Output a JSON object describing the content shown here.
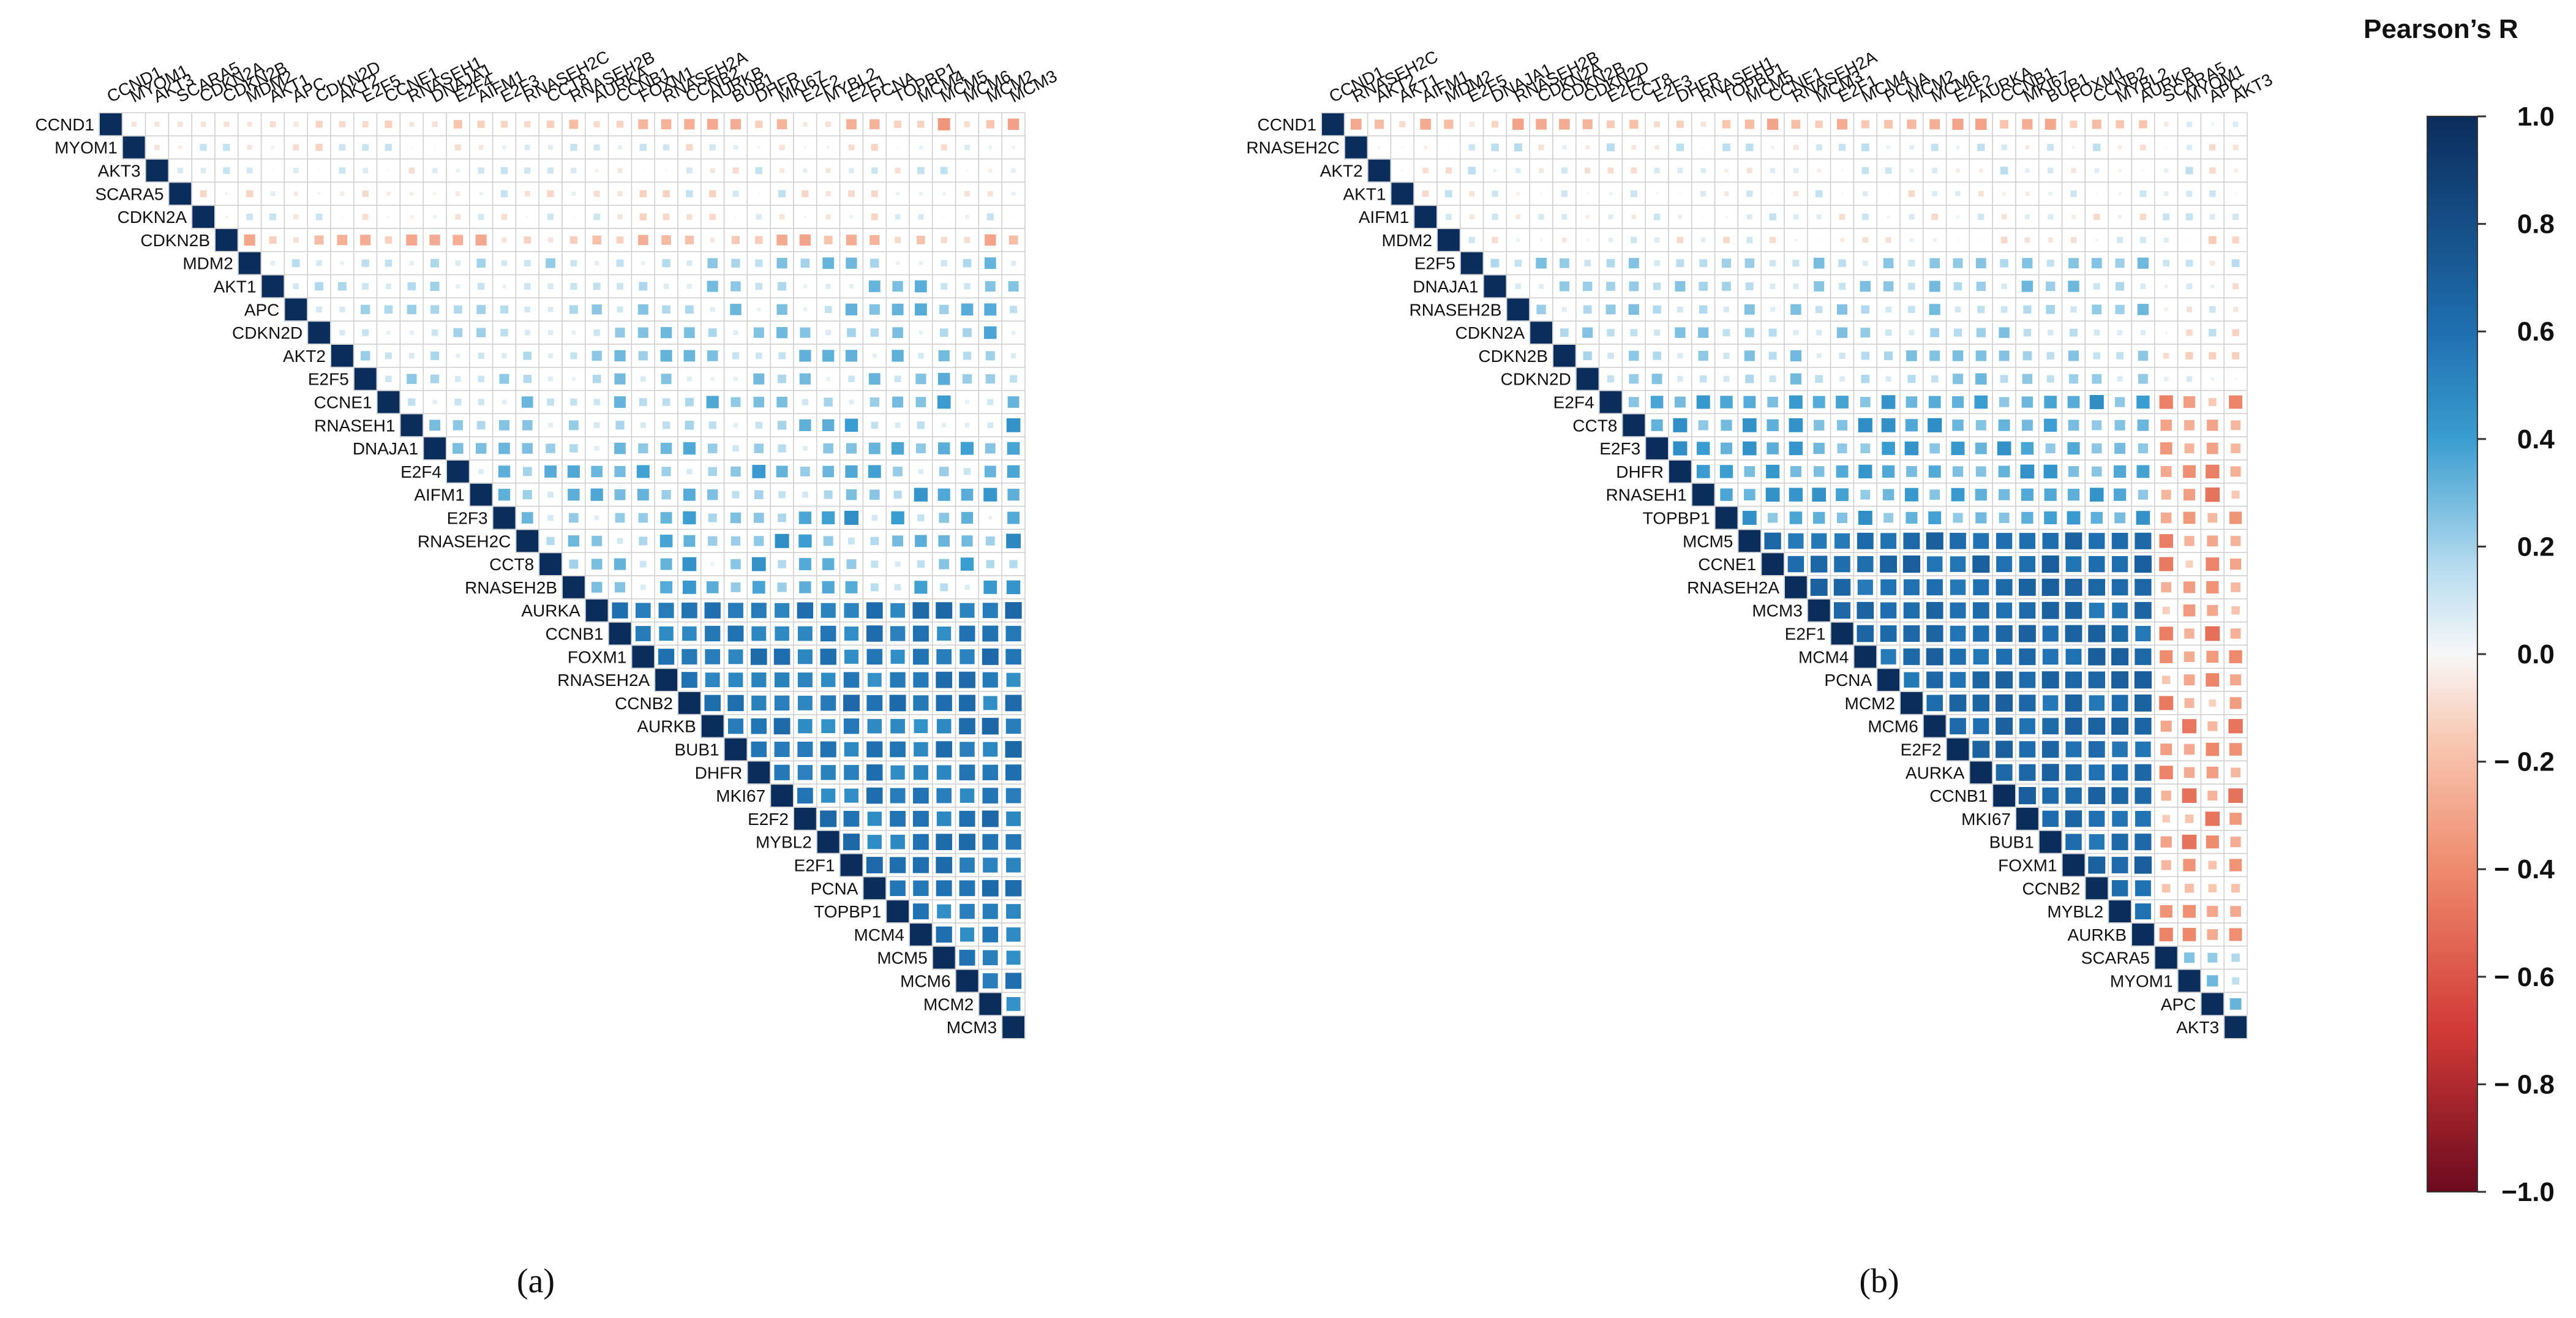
{
  "chart_data": [
    {
      "type": "heatmap",
      "panel_label": "(a)",
      "panel_letter": "a",
      "variant": "a",
      "genes": [
        "CCND1",
        "MYOM1",
        "AKT3",
        "SCARA5",
        "CDKN2A",
        "CDKN2B",
        "MDM2",
        "AKT1",
        "APC",
        "CDKN2D",
        "AKT2",
        "E2F5",
        "CCNE1",
        "RNASEH1",
        "DNAJA1",
        "E2F4",
        "AIFM1",
        "E2F3",
        "RNASEH2C",
        "CCT8",
        "RNASEH2B",
        "AURKA",
        "CCNB1",
        "FOXM1",
        "RNASEH2A",
        "CCNB2",
        "AURKB",
        "BUB1",
        "DHFR",
        "MKI67",
        "E2F2",
        "MYBL2",
        "E2F1",
        "PCNA",
        "TOPBP1",
        "MCM4",
        "MCM5",
        "MCM6",
        "MCM2",
        "MCM3"
      ],
      "layout": "upper-triangle",
      "vmin": -1.0,
      "vmax": 1.0
    },
    {
      "type": "heatmap",
      "panel_label": "(b)",
      "panel_letter": "b",
      "variant": "b",
      "genes": [
        "CCND1",
        "RNASEH2C",
        "AKT2",
        "AKT1",
        "AIFM1",
        "MDM2",
        "E2F5",
        "DNAJA1",
        "RNASEH2B",
        "CDKN2A",
        "CDKN2B",
        "CDKN2D",
        "E2F4",
        "CCT8",
        "E2F3",
        "DHFR",
        "RNASEH1",
        "TOPBP1",
        "MCM5",
        "CCNE1",
        "RNASEH2A",
        "MCM3",
        "E2F1",
        "MCM4",
        "PCNA",
        "MCM2",
        "MCM6",
        "E2F2",
        "AURKA",
        "CCNB1",
        "MKI67",
        "BUB1",
        "FOXM1",
        "CCNB2",
        "MYBL2",
        "AURKB",
        "SCARA5",
        "MYOM1",
        "APC",
        "AKT3"
      ],
      "layout": "upper-triangle",
      "vmin": -1.0,
      "vmax": 1.0
    }
  ],
  "colorbar": {
    "title": "Pearson’s R",
    "ticks": [
      "1.0",
      "0.8",
      "0.6",
      "0.4",
      "0.2",
      "0.0",
      "− 0.2",
      "− 0.4",
      "− 0.6",
      "− 0.8",
      "−1.0"
    ],
    "tick_values": [
      1.0,
      0.8,
      0.6,
      0.4,
      0.2,
      0.0,
      -0.2,
      -0.4,
      -0.6,
      -0.8,
      -1.0
    ]
  },
  "colors": {
    "pos_max": "#0b2d5c",
    "pos_mid": "#2a8ac8",
    "neutral": "#f7f7f7",
    "neg_mid": "#ee8a6c",
    "neg_max": "#6b0a1e",
    "grid": "#cfcfcf"
  }
}
